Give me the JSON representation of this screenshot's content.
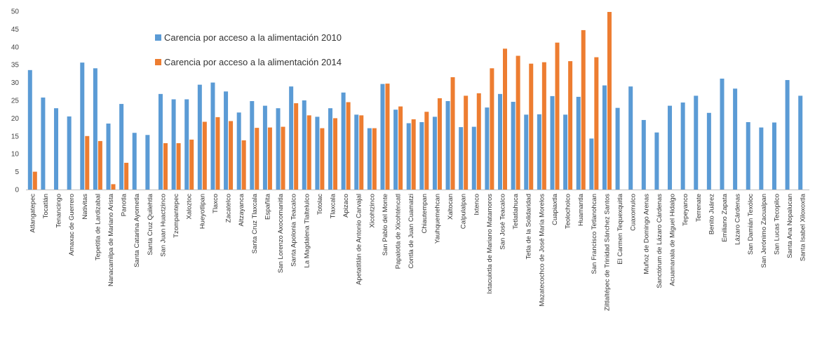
{
  "colors": {
    "series_2010": "#5b9bd5",
    "series_2014": "#ed7d31"
  },
  "chart_data": {
    "type": "bar",
    "title": "",
    "xlabel": "",
    "ylabel": "",
    "ylim": [
      0,
      50
    ],
    "yticks": [
      0,
      5,
      10,
      15,
      20,
      25,
      30,
      35,
      40,
      45,
      50
    ],
    "grid": false,
    "legend_position": "top-left",
    "categories": [
      "Atlangatepec",
      "Tocatlán",
      "Tenancingo",
      "Amaxac de Guerrero",
      "Nativitas",
      "Tepetitla de Lardizabal",
      "Nanacamilpa de Mariano Arista",
      "Panotla",
      "Santa Catarina Ayometla",
      "Santa Cruz Quilehtla",
      "San Juan Huactzinco",
      "Tzompantepec",
      "Xaloztoc",
      "Hueyotlipan",
      "Tlaxco",
      "Zacatelco",
      "Altzayanca",
      "Santa Cruz Tlaxcala",
      "Españita",
      "San Lorenzo Axocomanitla",
      "Santa Apolonia Teacalco",
      "La Magdalena Tlaltelulco",
      "Totolac",
      "Tlaxcala",
      "Apizaco",
      "Apetatitlán de Antonio Carvajal",
      "Xicohtzinco",
      "San Pablo del Monte",
      "Papalotla de Xicohténcatl",
      "Contla de Juan Cuamatzi",
      "Chiautempan",
      "Yauhquemehcan",
      "Xaltocan",
      "Calpulalpan",
      "Ixtenco",
      "Ixtacuixtla de Mariano Matamoros",
      "San José Teacalco",
      "Tetlatlahuca",
      "Tetla de la Solidaridad",
      "Mazatecochco de José María Morelos",
      "Cuapiaxtla",
      "Teolocholco",
      "Huamantla",
      "San Francisco Tetlanohcan",
      "Ziltlaltépec de Trinidad Sánchez Santos",
      "El Carmen Tequexquitla",
      "Cuaxomulco",
      "Muñoz de Domingo Arenas",
      "Sanctórum de Lázaro Cárdenas",
      "Acuamanala de Miguel Hidalgo",
      "Tepeyanco",
      "Terrenate",
      "Benito Juárez",
      "Emiliano Zapata",
      "Lázaro Cárdenas",
      "San Damián Texóloc",
      "San Jerónimo Zacualpan",
      "San Lucas Tecopilco",
      "Santa Ana Nopalucan",
      "Santa Isabel Xiloxoxtla"
    ],
    "series": [
      {
        "name": "Carencia por acceso a la alimentación 2010",
        "values": [
          33.5,
          25.8,
          22.8,
          20.5,
          35.6,
          34,
          18.5,
          24,
          15.9,
          15.3,
          26.8,
          25.3,
          25.3,
          29.4,
          30,
          27.5,
          21.6,
          24.8,
          23.5,
          22.8,
          28.9,
          25,
          20.4,
          22.8,
          27.2,
          21,
          17.2,
          29.6,
          22.4,
          18.6,
          18.9,
          20.4,
          24.8,
          17.5,
          17.6,
          23,
          26.8,
          24.6,
          21,
          21.1,
          26.2,
          21,
          26,
          14.3,
          29.2,
          22.9,
          28.9,
          19.5,
          16,
          23.5,
          24.4,
          26.3,
          21.5,
          31.1,
          28.3,
          18.9,
          17.4,
          18.8,
          30.7,
          26.3
        ]
      },
      {
        "name": "Carencia por acceso a la alimentación 2014",
        "values": [
          5,
          null,
          null,
          null,
          15,
          13.6,
          1.5,
          7.5,
          null,
          null,
          13,
          13,
          14,
          19,
          20.3,
          19.2,
          13.8,
          17.3,
          17.4,
          17.6,
          24.2,
          20.8,
          17.2,
          20,
          24.5,
          20.8,
          17.2,
          29.7,
          23.3,
          19.7,
          21.8,
          25.6,
          31.5,
          26.3,
          27,
          34,
          39.5,
          37.5,
          35.3,
          35.7,
          41.2,
          36,
          44.7,
          37.1,
          49.8,
          null,
          null,
          null,
          null,
          null,
          null,
          null,
          null,
          null,
          null,
          null,
          null,
          null,
          null,
          null
        ]
      }
    ]
  }
}
